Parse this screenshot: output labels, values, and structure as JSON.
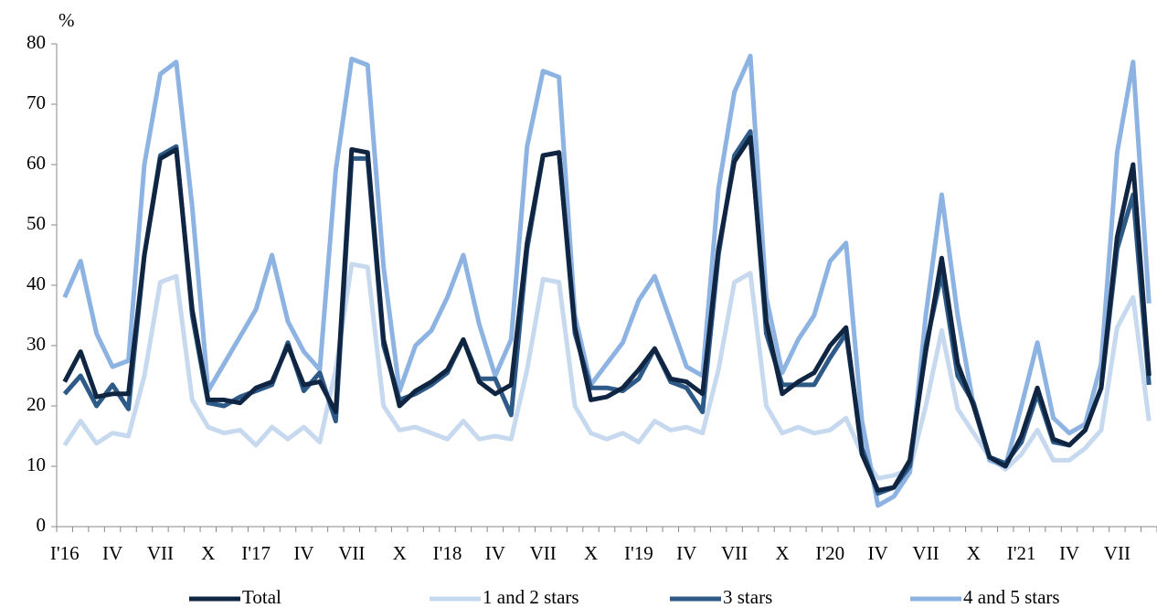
{
  "chart_data": {
    "type": "line",
    "y_label": "%",
    "categories": [
      "I'16",
      null,
      null,
      "IV",
      null,
      null,
      "VII",
      null,
      null,
      "X",
      null,
      null,
      "I'17",
      null,
      null,
      "IV",
      null,
      null,
      "VII",
      null,
      null,
      "X",
      null,
      null,
      "I'18",
      null,
      null,
      "IV",
      null,
      null,
      "VII",
      null,
      null,
      "X",
      null,
      null,
      "I'19",
      null,
      null,
      "IV",
      null,
      null,
      "VII",
      null,
      null,
      "X",
      null,
      null,
      "I'20",
      null,
      null,
      "IV",
      null,
      null,
      "VII",
      null,
      null,
      "X",
      null,
      null,
      "I'21",
      null,
      null,
      "IV",
      null,
      null,
      "VII",
      null,
      null
    ],
    "series": [
      {
        "name": "1 and 2 stars",
        "color": "#c6d9ef",
        "values": [
          13.5,
          17.5,
          13.8,
          15.5,
          15,
          25,
          40.5,
          41.5,
          21,
          16.5,
          15.5,
          16,
          13.5,
          16.5,
          14.5,
          16.5,
          14,
          26,
          43.5,
          43,
          20,
          16,
          16.5,
          15.5,
          14.5,
          17.5,
          14.5,
          15,
          14.5,
          26,
          41,
          40.5,
          20,
          15.5,
          14.5,
          15.5,
          14,
          17.5,
          16,
          16.5,
          15.5,
          26,
          40.5,
          42,
          20,
          15.5,
          16.5,
          15.5,
          16,
          18,
          12,
          8,
          8.5,
          9.5,
          20,
          32.5,
          19.5,
          15.5,
          11.5,
          9.5,
          12,
          16,
          11,
          11,
          13,
          16,
          33,
          38,
          17.5
        ]
      },
      {
        "name": "4 and 5 stars",
        "color": "#8db3e2",
        "values": [
          38,
          44,
          32,
          26.5,
          27.5,
          60,
          75,
          77,
          53,
          22.5,
          27,
          31.5,
          36,
          45,
          34,
          29,
          26,
          59,
          77.5,
          76.5,
          43,
          22.5,
          30,
          32.5,
          38,
          45,
          33.5,
          25,
          31,
          63,
          75.5,
          74.5,
          35,
          23.5,
          27,
          30.5,
          37.5,
          41.5,
          34,
          26.5,
          25,
          56,
          72,
          78,
          38,
          25.5,
          31,
          35,
          44,
          47,
          17.5,
          3.5,
          5,
          9,
          35,
          55,
          35,
          20,
          11,
          10,
          20,
          30.5,
          18,
          15.5,
          17,
          27,
          62,
          77,
          37
        ]
      },
      {
        "name": "3 stars",
        "color": "#2e5a87",
        "values": [
          22,
          25,
          20,
          23.5,
          19.5,
          45,
          61.5,
          63,
          35,
          20.5,
          20,
          21.5,
          22.5,
          23.5,
          30.5,
          22.5,
          25.5,
          17.5,
          61,
          61,
          30,
          21,
          22,
          23.5,
          25.5,
          31,
          24.5,
          24.5,
          18.5,
          46,
          61.5,
          62,
          32,
          23,
          23,
          22.5,
          24.5,
          29.5,
          24,
          23,
          19,
          45,
          61.5,
          65.5,
          32,
          23.5,
          23.5,
          23.5,
          28,
          32,
          13,
          5.5,
          6.5,
          10,
          30,
          42,
          25,
          20.5,
          11.5,
          10.5,
          14,
          22,
          14,
          13.5,
          16,
          23,
          46,
          55,
          23.5
        ]
      },
      {
        "name": "Total",
        "color": "#0f2542",
        "values": [
          24,
          29,
          21.5,
          22,
          22,
          45,
          61,
          62.5,
          36,
          21,
          21,
          20.5,
          23,
          24,
          30,
          23.5,
          24,
          19,
          62.5,
          62,
          31,
          20,
          22.5,
          24,
          26,
          31,
          24,
          22,
          23.5,
          47,
          61.5,
          62,
          33,
          21,
          21.5,
          23,
          26,
          29.5,
          24.5,
          24,
          22,
          46,
          60.5,
          64.5,
          34,
          22,
          24,
          25.5,
          30,
          33,
          12,
          6,
          6.5,
          11,
          29,
          44.5,
          27,
          20,
          11.5,
          10,
          15,
          23,
          14.5,
          13.5,
          16,
          23,
          48,
          60,
          25
        ]
      }
    ],
    "legend_order": [
      "Total",
      "1 and 2 stars",
      "3 stars",
      "4 and 5 stars"
    ],
    "ylim": [
      0,
      80
    ],
    "yticks": [
      0,
      10,
      20,
      30,
      40,
      50,
      60,
      70,
      80
    ],
    "grid": false
  }
}
